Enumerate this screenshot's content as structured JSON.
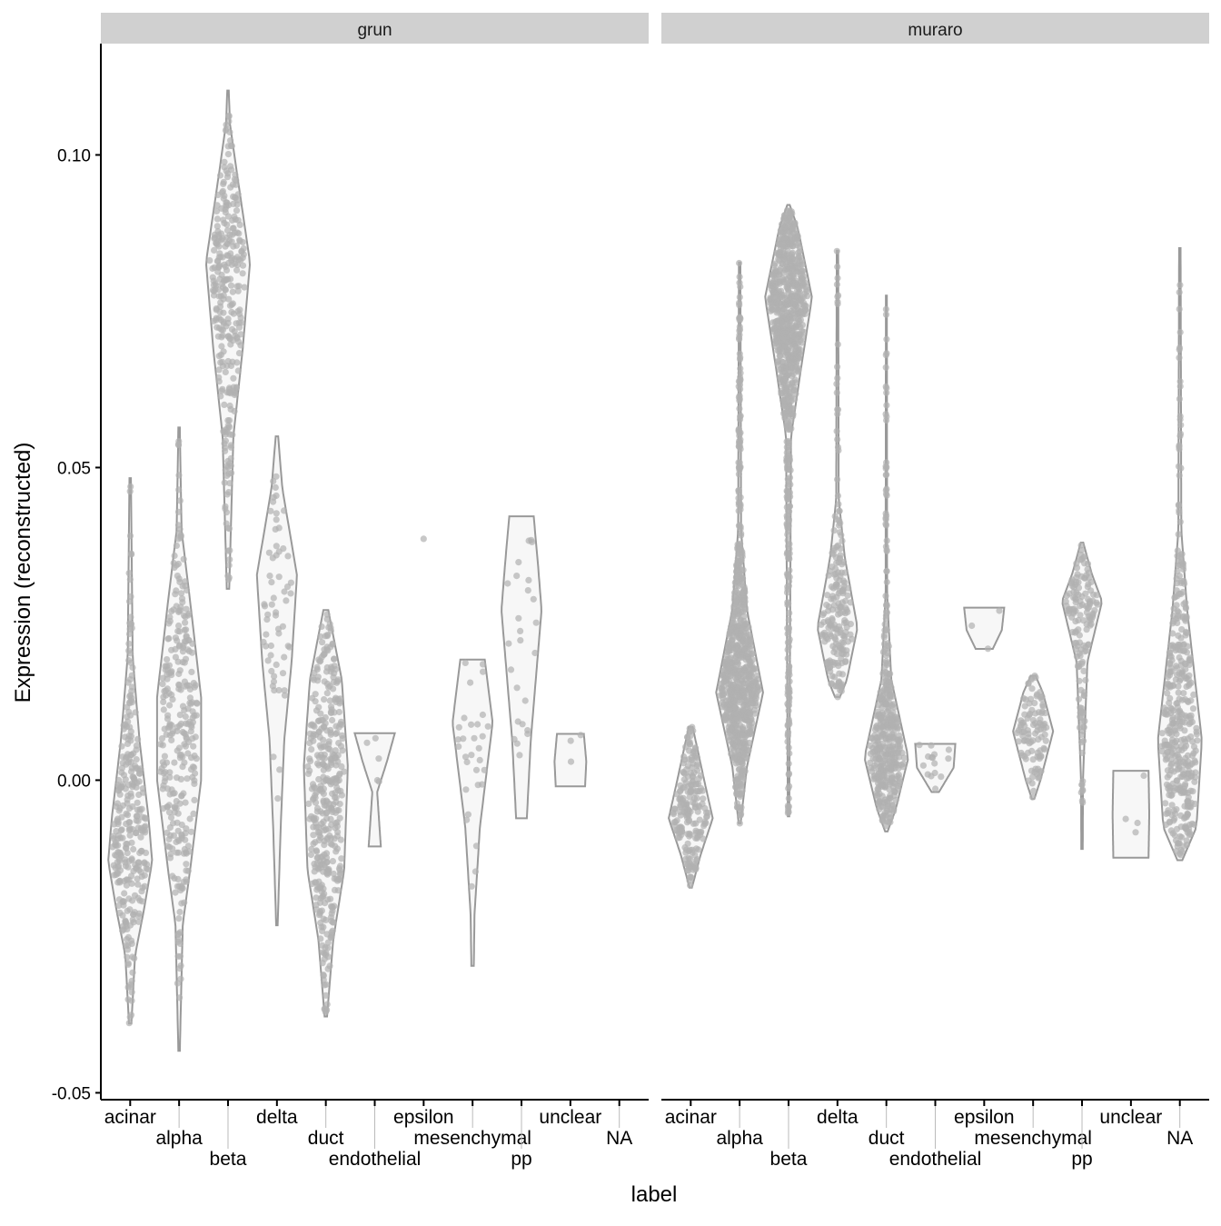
{
  "chart_data": {
    "type": "violin",
    "xlabel": "label",
    "ylabel": "Expression (reconstructed)",
    "ylim": [
      -0.0511,
      0.1178
    ],
    "yticks": [
      -0.05,
      0.0,
      0.05,
      0.1
    ],
    "ytick_labels": [
      "-0.05",
      "0.00",
      "0.05",
      "0.10"
    ],
    "grid": false,
    "categories": [
      "acinar",
      "alpha",
      "beta",
      "delta",
      "duct",
      "endothelial",
      "epsilon",
      "mesenchymal",
      "pp",
      "unclear",
      "NA"
    ],
    "colors": {
      "strip": "#d0d0d0",
      "violin_fill": "#f7f7f7",
      "violin_stroke": "#999999",
      "points": "#b0b0b0"
    },
    "panels": [
      {
        "name": "grun",
        "violins": [
          {
            "category": "acinar",
            "min": -0.0389,
            "max": 0.0483,
            "n": 300,
            "profile": [
              [
                -0.0389,
                0.05
              ],
              [
                -0.028,
                0.2
              ],
              [
                -0.021,
                0.55
              ],
              [
                -0.013,
                0.9
              ],
              [
                -0.006,
                0.75
              ],
              [
                0.0064,
                0.38
              ],
              [
                0.02,
                0.1
              ],
              [
                0.0483,
                0.03
              ]
            ]
          },
          {
            "category": "alpha",
            "min": -0.0433,
            "max": 0.0564,
            "n": 300,
            "profile": [
              [
                -0.0433,
                0.03
              ],
              [
                -0.023,
                0.15
              ],
              [
                -0.0144,
                0.45
              ],
              [
                0.0,
                0.9
              ],
              [
                0.0133,
                0.9
              ],
              [
                0.027,
                0.5
              ],
              [
                0.04,
                0.1
              ],
              [
                0.0564,
                0.03
              ]
            ]
          },
          {
            "category": "beta",
            "min": 0.0306,
            "max": 0.1103,
            "n": 300,
            "profile": [
              [
                0.0306,
                0.05
              ],
              [
                0.055,
                0.22
              ],
              [
                0.0689,
                0.6
              ],
              [
                0.0828,
                0.9
              ],
              [
                0.0967,
                0.38
              ],
              [
                0.105,
                0.08
              ],
              [
                0.1103,
                0.03
              ]
            ]
          },
          {
            "category": "delta",
            "min": -0.0232,
            "max": 0.055,
            "n": 60,
            "profile": [
              [
                -0.0232,
                0.03
              ],
              [
                -0.008,
                0.15
              ],
              [
                0.0064,
                0.3
              ],
              [
                0.0189,
                0.6
              ],
              [
                0.0328,
                0.82
              ],
              [
                0.0467,
                0.22
              ],
              [
                0.055,
                0.05
              ]
            ]
          },
          {
            "category": "duct",
            "min": -0.0378,
            "max": 0.0272,
            "n": 400,
            "profile": [
              [
                -0.0378,
                0.05
              ],
              [
                -0.0256,
                0.3
              ],
              [
                -0.0144,
                0.75
              ],
              [
                0.0022,
                0.9
              ],
              [
                0.0161,
                0.65
              ],
              [
                0.0272,
                0.1
              ]
            ]
          },
          {
            "category": "endothelial",
            "min": -0.0106,
            "max": 0.0075,
            "n": 5,
            "profile": [
              [
                -0.0106,
                0.25
              ],
              [
                -0.009,
                0.22
              ],
              [
                -0.0019,
                0.1
              ],
              [
                0.003,
                0.5
              ],
              [
                0.0075,
                0.82
              ]
            ]
          },
          {
            "category": "epsilon",
            "min": 0.0386,
            "max": 0.0386,
            "n": 1,
            "profile": []
          },
          {
            "category": "mesenchymal",
            "min": -0.0297,
            "max": 0.0193,
            "n": 30,
            "profile": [
              [
                -0.0297,
                0.05
              ],
              [
                -0.0214,
                0.08
              ],
              [
                -0.0075,
                0.3
              ],
              [
                0.0092,
                0.82
              ],
              [
                0.0193,
                0.5
              ]
            ]
          },
          {
            "category": "pp",
            "min": -0.0061,
            "max": 0.0422,
            "n": 25,
            "profile": [
              [
                -0.0061,
                0.22
              ],
              [
                0.0064,
                0.38
              ],
              [
                0.0272,
                0.82
              ],
              [
                0.0342,
                0.68
              ],
              [
                0.0422,
                0.5
              ]
            ]
          },
          {
            "category": "unclear",
            "min": -0.001,
            "max": 0.0074,
            "n": 3,
            "profile": [
              [
                -0.001,
                0.6
              ],
              [
                0.003,
                0.65
              ],
              [
                0.0074,
                0.55
              ]
            ]
          },
          {
            "category": "NA",
            "min": null,
            "max": null,
            "n": 0,
            "profile": []
          }
        ]
      },
      {
        "name": "muraro",
        "violins": [
          {
            "category": "acinar",
            "min": -0.0172,
            "max": 0.0085,
            "n": 200,
            "profile": [
              [
                -0.0172,
                0.05
              ],
              [
                -0.012,
                0.4
              ],
              [
                -0.0061,
                0.9
              ],
              [
                0.0,
                0.55
              ],
              [
                0.0085,
                0.08
              ]
            ]
          },
          {
            "category": "alpha",
            "min": -0.0069,
            "max": 0.0828,
            "n": 800,
            "profile": [
              [
                -0.0069,
                0.04
              ],
              [
                0.0022,
                0.3
              ],
              [
                0.014,
                0.96
              ],
              [
                0.0272,
                0.3
              ],
              [
                0.04,
                0.06
              ],
              [
                0.0828,
                0.03
              ]
            ]
          },
          {
            "category": "beta",
            "min": -0.0058,
            "max": 0.092,
            "n": 800,
            "profile": [
              [
                -0.0058,
                0.03
              ],
              [
                0.055,
                0.1
              ],
              [
                0.0661,
                0.52
              ],
              [
                0.0772,
                0.96
              ],
              [
                0.0883,
                0.38
              ],
              [
                0.092,
                0.05
              ]
            ]
          },
          {
            "category": "delta",
            "min": 0.0133,
            "max": 0.0847,
            "n": 200,
            "profile": [
              [
                0.0133,
                0.1
              ],
              [
                0.016,
                0.38
              ],
              [
                0.0244,
                0.82
              ],
              [
                0.0356,
                0.3
              ],
              [
                0.045,
                0.05
              ],
              [
                0.0847,
                0.03
              ]
            ]
          },
          {
            "category": "duct",
            "min": -0.0082,
            "max": 0.0775,
            "n": 400,
            "profile": [
              [
                -0.0082,
                0.05
              ],
              [
                -0.0047,
                0.38
              ],
              [
                0.0036,
                0.9
              ],
              [
                0.0161,
                0.2
              ],
              [
                0.03,
                0.03
              ],
              [
                0.0775,
                0.02
              ]
            ]
          },
          {
            "category": "endothelial",
            "min": -0.0019,
            "max": 0.0058,
            "n": 15,
            "profile": [
              [
                -0.0019,
                0.15
              ],
              [
                0.002,
                0.75
              ],
              [
                0.0058,
                0.82
              ]
            ]
          },
          {
            "category": "epsilon",
            "min": 0.021,
            "max": 0.0276,
            "n": 3,
            "profile": [
              [
                0.021,
                0.35
              ],
              [
                0.024,
                0.72
              ],
              [
                0.0276,
                0.82
              ]
            ]
          },
          {
            "category": "mesenchymal",
            "min": -0.003,
            "max": 0.0167,
            "n": 100,
            "profile": [
              [
                -0.003,
                0.05
              ],
              [
                0.0,
                0.3
              ],
              [
                0.0078,
                0.82
              ],
              [
                0.014,
                0.4
              ],
              [
                0.0167,
                0.1
              ]
            ]
          },
          {
            "category": "pp",
            "min": -0.011,
            "max": 0.038,
            "n": 150,
            "profile": [
              [
                -0.011,
                0.03
              ],
              [
                0.0,
                0.04
              ],
              [
                0.0189,
                0.22
              ],
              [
                0.0286,
                0.82
              ],
              [
                0.033,
                0.4
              ],
              [
                0.038,
                0.05
              ]
            ]
          },
          {
            "category": "unclear",
            "min": -0.0124,
            "max": 0.0015,
            "n": 4,
            "profile": [
              [
                -0.0124,
                0.72
              ],
              [
                -0.0055,
                0.75
              ],
              [
                0.0015,
                0.72
              ]
            ]
          },
          {
            "category": "NA",
            "min": -0.0128,
            "max": 0.0851,
            "n": 400,
            "profile": [
              [
                -0.0128,
                0.1
              ],
              [
                -0.0075,
                0.68
              ],
              [
                0.0064,
                0.9
              ],
              [
                0.0272,
                0.3
              ],
              [
                0.04,
                0.06
              ],
              [
                0.0851,
                0.03
              ]
            ]
          }
        ]
      }
    ]
  }
}
